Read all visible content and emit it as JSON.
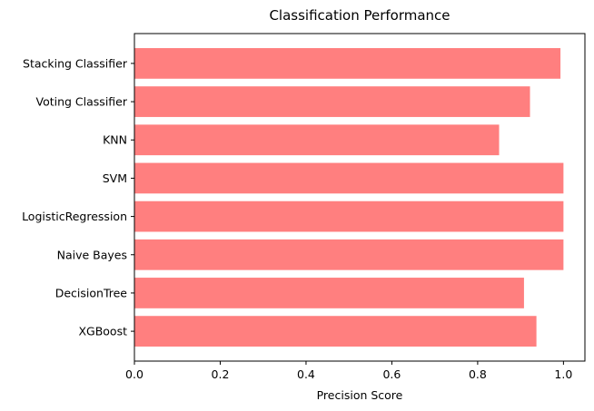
{
  "chart_data": {
    "type": "bar",
    "orientation": "horizontal",
    "title": "Classification Performance",
    "xlabel": "Precision Score",
    "ylabel": "",
    "categories": [
      "XGBoost",
      "DecisionTree",
      "Naive Bayes",
      "LogisticRegression",
      "SVM",
      "KNN",
      "Voting Classifier",
      "Stacking Classifier"
    ],
    "values": [
      0.937,
      0.908,
      1.0,
      1.0,
      1.0,
      0.85,
      0.922,
      0.993
    ],
    "xlim": [
      0.0,
      1.05
    ],
    "xticks": [
      "0.0",
      "0.2",
      "0.4",
      "0.6",
      "0.8",
      "1.0"
    ],
    "bar_color": "#ff7f7f",
    "grid": false
  }
}
